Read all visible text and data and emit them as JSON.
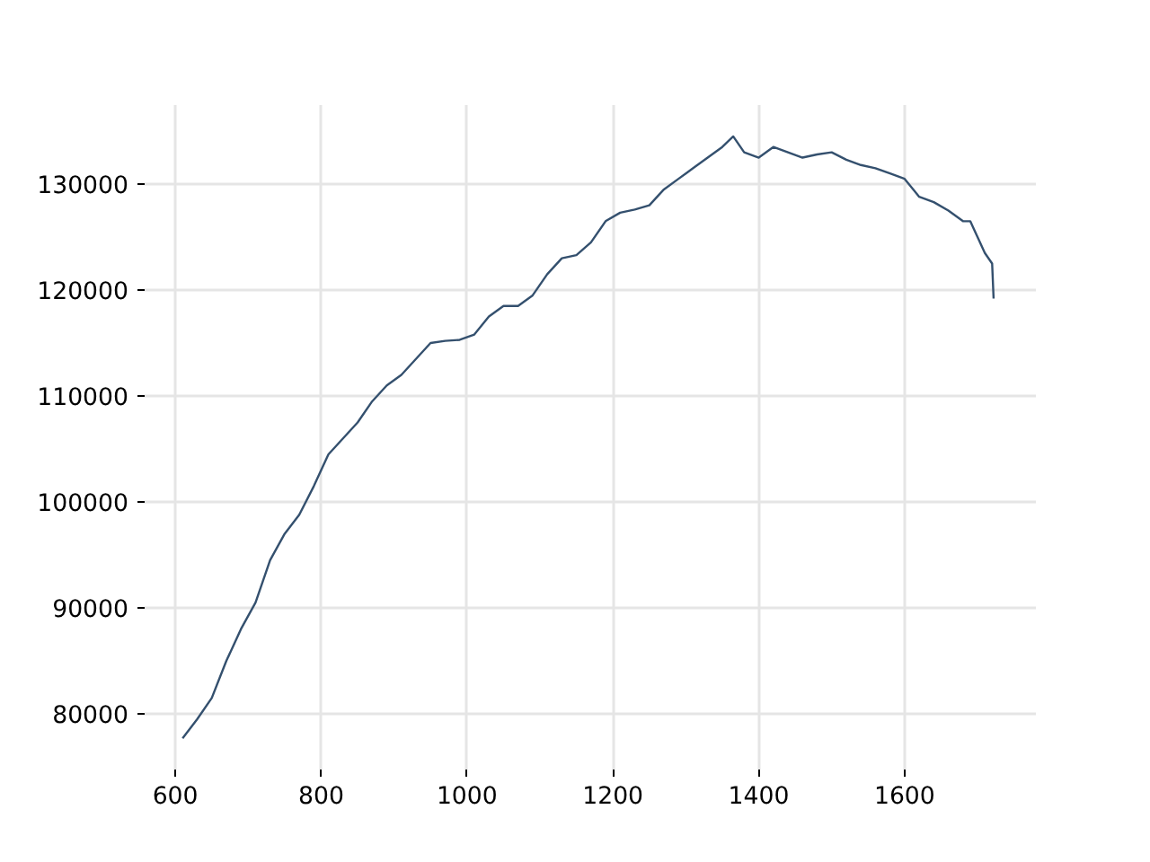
{
  "chart_data": {
    "type": "line",
    "x": [
      610,
      630,
      650,
      670,
      690,
      710,
      730,
      750,
      770,
      790,
      810,
      830,
      850,
      870,
      890,
      910,
      930,
      950,
      970,
      990,
      1010,
      1030,
      1050,
      1070,
      1090,
      1110,
      1130,
      1150,
      1170,
      1190,
      1210,
      1230,
      1250,
      1270,
      1290,
      1310,
      1330,
      1350,
      1365,
      1380,
      1400,
      1420,
      1440,
      1460,
      1480,
      1500,
      1520,
      1540,
      1560,
      1580,
      1600,
      1620,
      1640,
      1660,
      1680,
      1690,
      1700,
      1710,
      1720,
      1722
    ],
    "series": [
      {
        "color": "#34506e",
        "values": [
          77700,
          79500,
          81500,
          85000,
          88000,
          90500,
          94500,
          97000,
          98800,
          101500,
          104500,
          106000,
          107500,
          109500,
          111000,
          112000,
          113500,
          115000,
          115200,
          115300,
          115800,
          117500,
          118500,
          118500,
          119500,
          121500,
          123000,
          123300,
          124500,
          126500,
          127300,
          127600,
          128000,
          129500,
          130500,
          131500,
          132500,
          133500,
          134500,
          133000,
          132500,
          133500,
          133000,
          132500,
          132800,
          133000,
          132300,
          131800,
          131500,
          131000,
          130500,
          128800,
          128300,
          127500,
          126500,
          126500,
          125000,
          123500,
          122500,
          119200
        ]
      }
    ],
    "xlim": [
      558,
      1780
    ],
    "ylim": [
      74750,
      137460
    ],
    "xticks": [
      600,
      800,
      1000,
      1200,
      1400,
      1600
    ],
    "yticks": [
      80000,
      90000,
      100000,
      110000,
      120000,
      130000
    ],
    "grid": true,
    "marker": "none",
    "line_style": "solid"
  }
}
